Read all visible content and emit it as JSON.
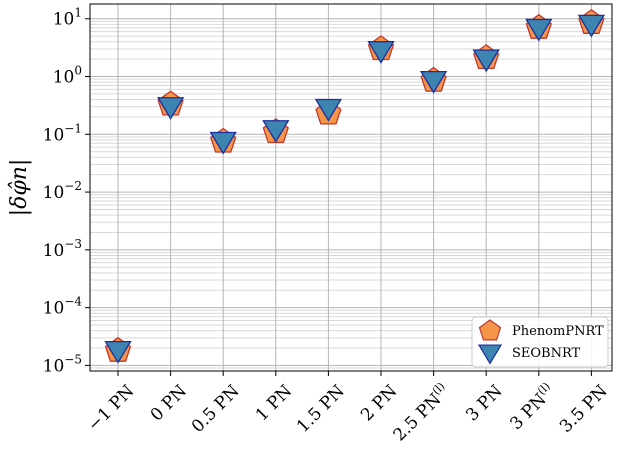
{
  "chart_data": {
    "type": "scatter",
    "title": "",
    "xlabel": "",
    "ylabel": "|δφ̂n|",
    "yscale": "log",
    "ylim": [
      8e-06,
      18
    ],
    "yticks": [
      {
        "value": 1e-05,
        "mantissa": "10",
        "exp": "−5"
      },
      {
        "value": 0.0001,
        "mantissa": "10",
        "exp": "−4"
      },
      {
        "value": 0.001,
        "mantissa": "10",
        "exp": "−3"
      },
      {
        "value": 0.01,
        "mantissa": "10",
        "exp": "−2"
      },
      {
        "value": 0.1,
        "mantissa": "10",
        "exp": "−1"
      },
      {
        "value": 1,
        "mantissa": "10",
        "exp": "0"
      },
      {
        "value": 10,
        "mantissa": "10",
        "exp": "1"
      }
    ],
    "categories": [
      {
        "label": "−1 PN",
        "sup": ""
      },
      {
        "label": "0 PN",
        "sup": ""
      },
      {
        "label": "0.5 PN",
        "sup": ""
      },
      {
        "label": "1 PN",
        "sup": ""
      },
      {
        "label": "1.5 PN",
        "sup": ""
      },
      {
        "label": "2 PN",
        "sup": ""
      },
      {
        "label": "2.5 PN",
        "sup": "(l)"
      },
      {
        "label": "3 PN",
        "sup": ""
      },
      {
        "label": "3 PN",
        "sup": "(l)"
      },
      {
        "label": "3.5 PN",
        "sup": ""
      }
    ],
    "grid": true,
    "legend_position": "bottom-right",
    "series": [
      {
        "name": "PhenomPNRT",
        "marker": "pentagon",
        "color": "#f5954a",
        "edge": "#c0392b",
        "values": [
          1.8e-05,
          0.33,
          0.075,
          0.11,
          0.23,
          3.0,
          0.85,
          2.1,
          7.0,
          8.5
        ]
      },
      {
        "name": "SEOBNRT",
        "marker": "triangle-down",
        "color": "#3e84b0",
        "edge": "#1c2f9e",
        "values": [
          1.8e-05,
          0.3,
          0.075,
          0.12,
          0.28,
          2.8,
          0.85,
          2.0,
          6.8,
          8.0
        ]
      }
    ]
  }
}
